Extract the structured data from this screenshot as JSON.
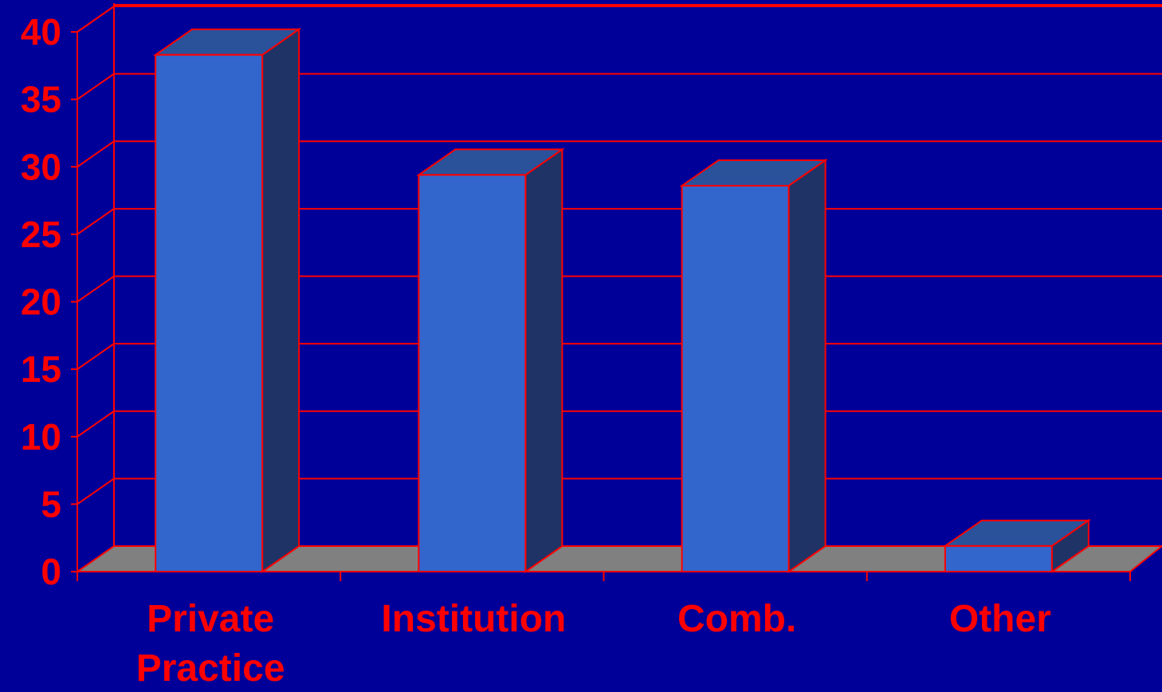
{
  "chart_data": {
    "type": "bar",
    "title": "",
    "xlabel": "",
    "ylabel": "",
    "categories": [
      [
        "Private",
        "Practice"
      ],
      [
        "Institution"
      ],
      [
        "Comb."
      ],
      [
        "Other"
      ]
    ],
    "values": [
      38.3,
      29.4,
      28.6,
      1.9
    ],
    "ylim": [
      0,
      40
    ],
    "yticks": [
      0,
      5,
      10,
      15,
      20,
      25,
      30,
      35,
      40
    ],
    "grid": true,
    "legend": "none"
  },
  "colors": {
    "background": "#000099",
    "axis_text": "#ff0000",
    "grid": "#ff0000",
    "bar_front": "#3366cc",
    "bar_side": "#1f3366",
    "bar_top": "#29529b",
    "floor": "#808080"
  }
}
